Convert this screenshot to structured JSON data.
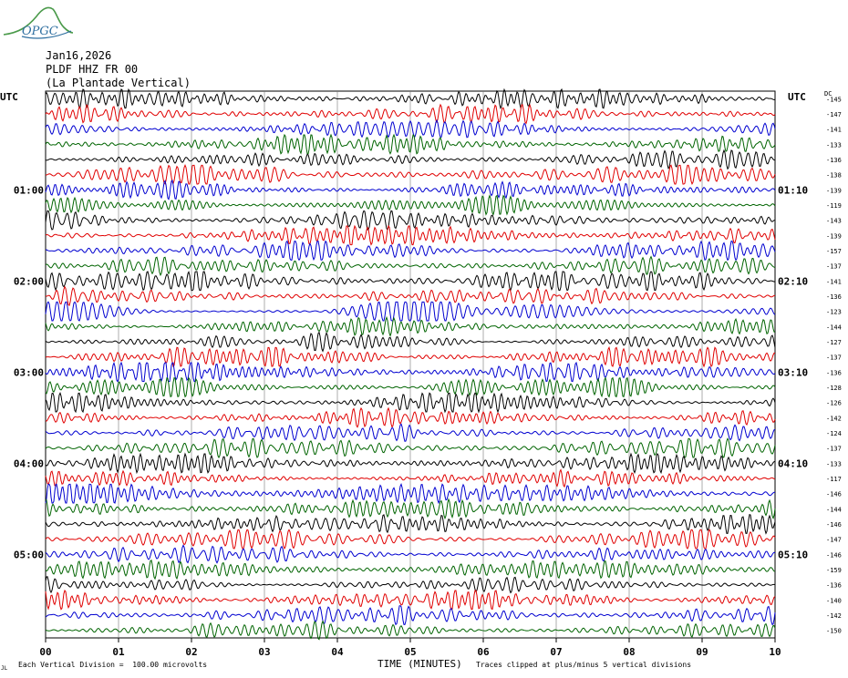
{
  "logo": {
    "text": "OPGC"
  },
  "header": {
    "date": "Jan16,2026",
    "station": "PLDF HHZ FR 00",
    "site": "(La Plantade Vertical)"
  },
  "left_axis_label": "UTC",
  "right_axis_label": "UTC",
  "dc_label": "DC",
  "footer": {
    "left": "Each Vertical Division =  100.00 microvolts",
    "center": "TIME (MINUTES)",
    "right": "Traces clipped at plus/minus 5 vertical divisions",
    "corner_mark": "JL"
  },
  "chart_data": {
    "type": "line",
    "title": "",
    "xlabel": "TIME (MINUTES)",
    "xlim": [
      0,
      10
    ],
    "x_ticks": [
      "00",
      "01",
      "02",
      "03",
      "04",
      "05",
      "06",
      "07",
      "08",
      "09",
      "10"
    ],
    "left_time_labels": [
      {
        "row": 6,
        "label": "01:00"
      },
      {
        "row": 12,
        "label": "02:00"
      },
      {
        "row": 18,
        "label": "03:00"
      },
      {
        "row": 24,
        "label": "04:00"
      },
      {
        "row": 30,
        "label": "05:00"
      }
    ],
    "right_time_labels": [
      {
        "row": 6,
        "label": "01:10"
      },
      {
        "row": 12,
        "label": "02:10"
      },
      {
        "row": 18,
        "label": "03:10"
      },
      {
        "row": 24,
        "label": "04:10"
      },
      {
        "row": 30,
        "label": "05:10"
      }
    ],
    "trace_colors": [
      "#000000",
      "#e00000",
      "#0000d0",
      "#006400"
    ],
    "dc_offsets": [
      -145,
      -147,
      -141,
      -133,
      -136,
      -138,
      -139,
      -119,
      -143,
      -139,
      -157,
      -137,
      -141,
      -136,
      -123,
      -144,
      -127,
      -137,
      -136,
      -128,
      -126,
      -142,
      -124,
      -137,
      -133,
      -117,
      -146,
      -144,
      -146,
      -147,
      -146,
      -159,
      -136,
      -140,
      -142,
      -150
    ],
    "grid": true
  }
}
